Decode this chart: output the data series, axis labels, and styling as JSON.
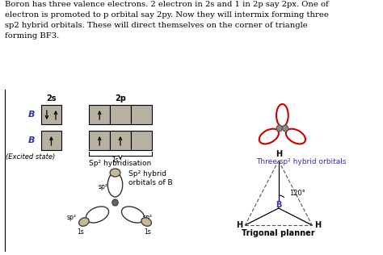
{
  "text_paragraph": "Boron has three valence electrons. 2 electron in 2s and 1 in 2p say 2px. One of\nelectron is promoted to p orbital say 2py. Now they will intermix forming three\nsp2 hybrid orbitals. These will direct themselves on the corner of triangle\nforming BF3.",
  "bg_color": "#ffffff",
  "text_color": "#000000",
  "box_color": "#b8b0a0",
  "label_2s": "2s",
  "label_2p": "2p",
  "label_B1": "B",
  "label_B2": "B",
  "label_excited": "(Excited state)",
  "label_sp2_hybrid": "Sp² hybridisation",
  "label_three_sp2": "Three sp² hybrid orbitals",
  "label_sp2_hybrid_B": "Sp² hybrid\norbitals of B",
  "label_trigonal": "Trigonal planner",
  "label_120": "120°",
  "orbital_color_red": "#cc0000",
  "orbital_color_dark": "#333333",
  "blue_color": "#3333aa",
  "dashed_line_color": "#555555"
}
